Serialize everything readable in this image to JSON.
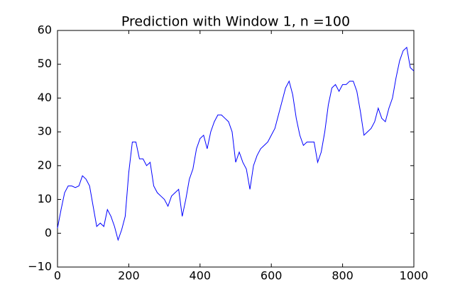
{
  "chart_data": {
    "type": "line",
    "title": "Prediction with Window 1, n =100",
    "x": [
      0,
      10,
      20,
      30,
      40,
      50,
      60,
      70,
      80,
      90,
      100,
      110,
      120,
      130,
      140,
      150,
      160,
      170,
      180,
      190,
      200,
      210,
      220,
      230,
      240,
      250,
      260,
      270,
      280,
      290,
      300,
      310,
      320,
      330,
      340,
      350,
      360,
      370,
      380,
      390,
      400,
      410,
      420,
      430,
      440,
      450,
      460,
      470,
      480,
      490,
      500,
      510,
      520,
      530,
      540,
      550,
      560,
      570,
      580,
      590,
      600,
      610,
      620,
      630,
      640,
      650,
      660,
      670,
      680,
      690,
      700,
      710,
      720,
      730,
      740,
      750,
      760,
      770,
      780,
      790,
      800,
      810,
      820,
      830,
      840,
      850,
      860,
      870,
      880,
      890,
      900,
      910,
      920,
      930,
      940,
      950,
      960,
      970,
      980,
      990,
      1000
    ],
    "series": [
      {
        "name": "prediction",
        "color": "#0000ff",
        "values": [
          1.5,
          7,
          12,
          14,
          14,
          13.5,
          14,
          17,
          16,
          14,
          8,
          2,
          3,
          2,
          7,
          5,
          2,
          -2,
          1,
          5,
          18,
          27,
          27,
          22,
          22,
          20,
          21,
          14,
          12,
          11,
          10,
          8,
          11,
          12,
          13,
          5,
          10,
          16,
          19,
          25,
          28,
          29,
          25,
          30,
          33,
          35,
          35,
          34,
          33,
          30,
          21,
          24,
          21,
          19,
          13,
          20,
          23,
          25,
          26,
          27,
          29,
          31,
          35,
          39,
          43,
          45,
          41,
          34,
          29,
          26,
          27,
          27,
          27,
          21,
          24,
          30,
          38,
          43,
          44,
          42,
          44,
          44,
          45,
          45,
          42,
          36,
          29,
          30,
          31,
          33,
          37,
          34,
          33,
          37,
          40,
          46,
          51,
          54,
          55,
          49,
          48
        ]
      }
    ],
    "xlim": [
      0,
      1000
    ],
    "xticks": [
      0,
      200,
      400,
      600,
      800,
      1000
    ],
    "ylim": [
      -10,
      60
    ],
    "yticks": [
      {
        "value": -10,
        "label": "−10"
      },
      0,
      10,
      20,
      30,
      40,
      50,
      60
    ],
    "grid": false
  }
}
